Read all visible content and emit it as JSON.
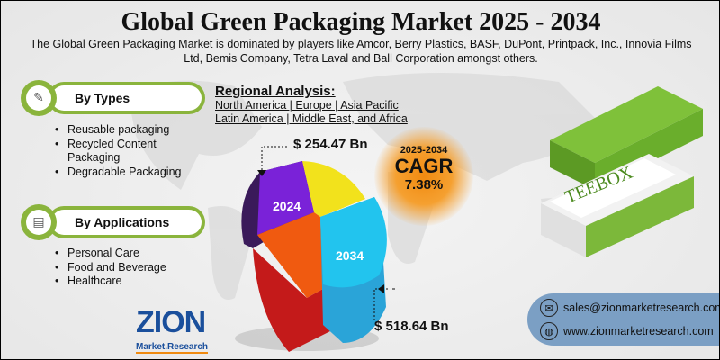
{
  "title": "Global Green Packaging Market 2025 - 2034",
  "subtitle": "The Global Green Packaging Market is dominated by players like Amcor, Berry Plastics, BASF, DuPont, Printpack, Inc., Innovia Films Ltd, Bemis Company, Tetra Laval and Ball Corporation amongst others.",
  "types": {
    "heading": "By Types",
    "icon": "edit-chat-icon",
    "items": [
      "Reusable packaging",
      "Recycled Content Packaging",
      "Degradable Packaging"
    ]
  },
  "applications": {
    "heading": "By Applications",
    "icon": "document-icon",
    "items": [
      "Personal Care",
      "Food and Beverage",
      "Healthcare"
    ]
  },
  "regional": {
    "heading": "Regional Analysis:",
    "line1": "North America | Europe | Asia Pacific",
    "line2": "Latin America | Middle East, and Africa"
  },
  "market": {
    "year_2024": "2024",
    "value_2024": "$ 254.47 Bn",
    "year_2034": "2034",
    "value_2034": "$ 518.64 Bn"
  },
  "cagr": {
    "period": "2025-2034",
    "label": "CAGR",
    "value": "7.38%"
  },
  "logo": {
    "name": "ZION",
    "sub": "Market.Research"
  },
  "product_text": "TEEBOX",
  "contact": {
    "email": "sales@zionmarketresearch.com",
    "website": "www.zionmarketresearch.com"
  },
  "colors": {
    "accent_green": "#8ab43c",
    "contact_blue": "#7b9fc4",
    "cagr_orange": "#f08a10"
  }
}
